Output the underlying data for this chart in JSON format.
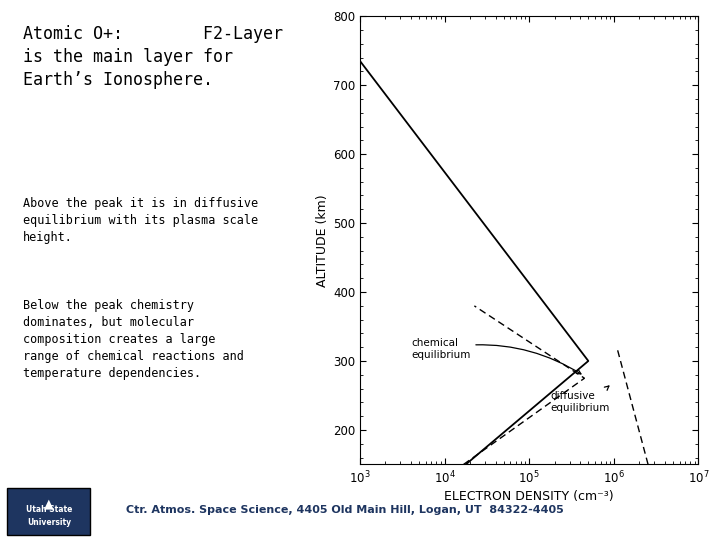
{
  "title_text": "Atomic O+:        F2-Layer\nis the main layer for\nEarth’s Ionosphere.",
  "para1": "Above the peak it is in diffusive\nequilibrium with its plasma scale\nheight.",
  "para2": "Below the peak chemistry\ndominates, but molecular\ncomposition creates a large\nrange of chemical reactions and\ntemperature dependencies.",
  "footer": "Ctr. Atmos. Space Science, 4405 Old Main Hill, Logan, UT  84322-4405",
  "xlabel": "ELECTRON DENSITY (cm⁻³)",
  "ylabel": "ALTITUDE (km)",
  "xlim_log": [
    3,
    7
  ],
  "ylim": [
    150,
    800
  ],
  "yticks": [
    200,
    300,
    400,
    500,
    600,
    700,
    800
  ],
  "background_color": "#ffffff",
  "text_color": "#000000",
  "title_fontsize": 12,
  "body_fontsize": 8.5,
  "footer_fontsize": 8,
  "axis_label_fontsize": 9,
  "logo_color": "#1e3560"
}
